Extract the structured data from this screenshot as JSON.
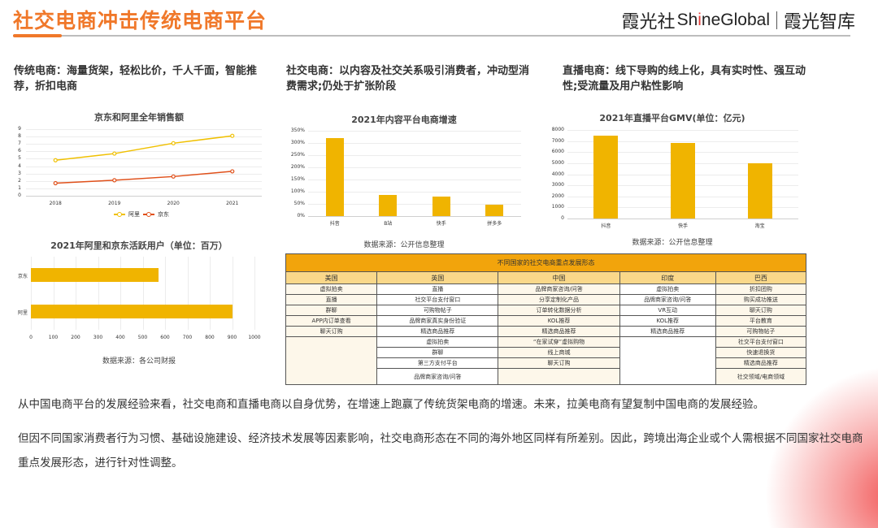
{
  "header": {
    "title": "社交电商冲击传统电商平台",
    "brand_cn": "霞光社",
    "brand_en_prefix": "Sh",
    "brand_en_i": "i",
    "brand_en_suffix": "neGlobal",
    "brand_sub": "霞光智库"
  },
  "descriptions": [
    {
      "text": "传统电商：海量货架，轻松比价，千人千面，智能推荐，折扣电商"
    },
    {
      "text": "社交电商：以内容及社交关系吸引消费者，冲动型消费需求;仍处于扩张阶段"
    },
    {
      "text": "直播电商：线下导购的线上化，具有实时性、强互动性;受流量及用户粘性影响"
    }
  ],
  "colors": {
    "accent_orange": "#f0782a",
    "bar_yellow": "#f0b400",
    "line_ali": "#f0c000",
    "line_jd": "#e0501a",
    "table_header": "#f2a40c",
    "table_col_header": "#fad88a",
    "table_body": "#fdf7ea"
  },
  "chart_data": [
    {
      "type": "line",
      "title": "京东和阿里全年销售额",
      "categories": [
        "2018",
        "2019",
        "2020",
        "2021"
      ],
      "series": [
        {
          "name": "阿里",
          "values": [
            4.8,
            5.7,
            7.1,
            8.1
          ]
        },
        {
          "name": "京东",
          "values": [
            1.7,
            2.1,
            2.6,
            3.3
          ]
        }
      ],
      "yticks": [
        "0",
        "1",
        "2",
        "3",
        "4",
        "5",
        "6",
        "7",
        "8",
        "9"
      ],
      "ylim": [
        0,
        9
      ],
      "legend_position": "bottom",
      "grid": true
    },
    {
      "type": "bar",
      "orientation": "horizontal",
      "title": "2021年阿里和京东活跃用户（单位：百万）",
      "categories": [
        "京东",
        "阿里"
      ],
      "values": [
        570,
        900
      ],
      "xticks": [
        "0",
        "100",
        "200",
        "300",
        "400",
        "500",
        "600",
        "700",
        "800",
        "900",
        "1000"
      ],
      "xlim": [
        0,
        1000
      ],
      "source": "数据来源：各公司财报",
      "grid": true
    },
    {
      "type": "bar",
      "title": "2021年内容平台电商增速",
      "categories": [
        "抖音",
        "B站",
        "快手",
        "拼多多"
      ],
      "values": [
        320,
        87,
        80,
        46
      ],
      "yticks": [
        "0%",
        "50%",
        "100%",
        "150%",
        "200%",
        "250%",
        "300%",
        "350%"
      ],
      "ylim": [
        0,
        350
      ],
      "unit": "%",
      "source": "数据来源：公开信息整理",
      "grid": true
    },
    {
      "type": "bar",
      "title": "2021年直播平台GMV(单位：亿元)",
      "categories": [
        "抖音",
        "快手",
        "淘宝"
      ],
      "values": [
        7500,
        6800,
        5000
      ],
      "yticks": [
        "0",
        "1000",
        "2000",
        "3000",
        "4000",
        "5000",
        "6000",
        "7000",
        "8000"
      ],
      "ylim": [
        0,
        8000
      ],
      "source": "数据来源：公开信息整理",
      "grid": true
    }
  ],
  "table": {
    "title": "不同国家的社交电商重点发展形态",
    "columns": [
      "美国",
      "英国",
      "中国",
      "印度",
      "巴西"
    ],
    "rows": [
      [
        "虚拟拍卖",
        "直播",
        "品牌商家咨询/问答",
        "虚拟拍卖",
        "折扣团购"
      ],
      [
        "直播",
        "社交平台支付窗口",
        "分享定制化产品",
        "品牌商家咨询/问答",
        "购买成功推送"
      ],
      [
        "群聊",
        "可购物帖子",
        "订单转化数据分析",
        "VR互动",
        "聊天订购"
      ],
      [
        "APP内订单查看",
        "品牌商家真实身份验证",
        "KOL推荐",
        "KOL推荐",
        "平台教育"
      ],
      [
        "聊天订购",
        "精选商品推荐",
        "精选商品推荐",
        "精选商品推荐",
        "可购物帖子"
      ],
      [
        "",
        "虚拟拍卖",
        "“在家试穿”虚拟购物",
        "",
        "社交平台支付窗口"
      ],
      [
        "",
        "群聊",
        "线上商城",
        "",
        "快速退换货"
      ],
      [
        "",
        "第三方支付平台",
        "聊天订购",
        "",
        "精选商品推荐"
      ],
      [
        "",
        "品牌商家咨询/问答",
        "",
        "",
        "社交领域/电商领域"
      ]
    ]
  },
  "paragraphs": [
    "从中国电商平台的发展经验来看，社交电商和直播电商以自身优势，在增速上跑赢了传统货架电商的增速。未来，拉美电商有望复制中国电商的发展经验。",
    "但因不同国家消费者行为习惯、基础设施建设、经济技术发展等因素影响，社交电商形态在不同的海外地区同样有所差别。因此，跨境出海企业或个人需根据不同国家社交电商重点发展形态，进行针对性调整。"
  ]
}
